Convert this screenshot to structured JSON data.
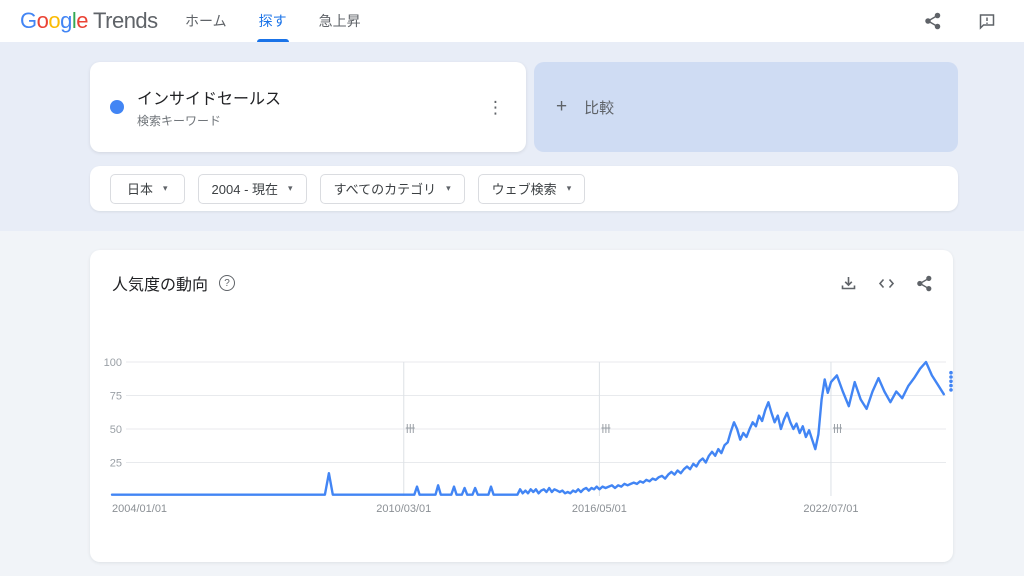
{
  "header": {
    "logo_letters": [
      {
        "ch": "G",
        "color": "#4285F4"
      },
      {
        "ch": "o",
        "color": "#EA4335"
      },
      {
        "ch": "o",
        "color": "#FBBC05"
      },
      {
        "ch": "g",
        "color": "#4285F4"
      },
      {
        "ch": "l",
        "color": "#34A853"
      },
      {
        "ch": "e",
        "color": "#EA4335"
      }
    ],
    "logo_suffix": "Trends",
    "tabs": [
      {
        "label": "ホーム",
        "active": false
      },
      {
        "label": "探す",
        "active": true
      },
      {
        "label": "急上昇",
        "active": false
      }
    ]
  },
  "query_card": {
    "term": "インサイドセールス",
    "type_label": "検索キーワード",
    "dot_color": "#4285f4"
  },
  "compare_card": {
    "plus": "+",
    "label": "比較"
  },
  "filters": [
    {
      "label": "日本"
    },
    {
      "label": "2004 - 現在"
    },
    {
      "label": "すべてのカテゴリ"
    },
    {
      "label": "ウェブ検索"
    }
  ],
  "filter_caret": "▾",
  "kebab_glyph": "⋮",
  "help_glyph": "?",
  "trend_card": {
    "title": "人気度の動向"
  },
  "chart_data": {
    "type": "line",
    "title": "人気度の動向",
    "series_name": "インサイドセールス",
    "frequency": "monthly",
    "start_month": "2004-01",
    "line_color": "#4285f4",
    "ylim": [
      0,
      100
    ],
    "y_ticks": [
      25,
      50,
      75,
      100
    ],
    "x_ticks": [
      {
        "label": "2004/01/01",
        "month_index": 0
      },
      {
        "label": "2010/03/01",
        "month_index": 74
      },
      {
        "label": "2016/05/01",
        "month_index": 148
      },
      {
        "label": "2022/07/01",
        "month_index": 222
      }
    ],
    "note_marker_month_indices": [
      74,
      148,
      222
    ],
    "partial_value": 92,
    "values": [
      1,
      1,
      1,
      1,
      1,
      1,
      1,
      1,
      1,
      1,
      1,
      1,
      1,
      1,
      1,
      1,
      1,
      1,
      1,
      1,
      1,
      1,
      1,
      1,
      1,
      1,
      1,
      1,
      1,
      1,
      1,
      1,
      1,
      1,
      1,
      1,
      1,
      1,
      1,
      1,
      1,
      1,
      1,
      1,
      1,
      1,
      1,
      1,
      1,
      1,
      1,
      1,
      1,
      1,
      1,
      17,
      1,
      1,
      1,
      1,
      1,
      1,
      1,
      1,
      1,
      1,
      1,
      1,
      1,
      1,
      1,
      1,
      1,
      1,
      1,
      1,
      1,
      1,
      1,
      7,
      1,
      1,
      1,
      1,
      1,
      1,
      1,
      8,
      1,
      1,
      1,
      1,
      1,
      7,
      1,
      1,
      1,
      6,
      1,
      1,
      1,
      6,
      1,
      1,
      1,
      1,
      1,
      7,
      1,
      1,
      1,
      1,
      1,
      1,
      1,
      1,
      1,
      1,
      5,
      2,
      4,
      2,
      5,
      3,
      5,
      2,
      4,
      5,
      3,
      6,
      3,
      5,
      4,
      3,
      4,
      2,
      3,
      2,
      4,
      3,
      5,
      3,
      5,
      6,
      4,
      6,
      5,
      7,
      5,
      7,
      6,
      7,
      8,
      6,
      8,
      7,
      9,
      8,
      9,
      10,
      9,
      11,
      10,
      12,
      11,
      13,
      12,
      14,
      15,
      13,
      16,
      18,
      16,
      19,
      17,
      20,
      22,
      20,
      24,
      22,
      26,
      28,
      25,
      30,
      33,
      30,
      35,
      32,
      38,
      40,
      48,
      55,
      50,
      42,
      47,
      44,
      50,
      55,
      52,
      60,
      56,
      64,
      70,
      62,
      55,
      60,
      50,
      57,
      62,
      55,
      50,
      54,
      47,
      52,
      44,
      49,
      42,
      35,
      46,
      72,
      87,
      77,
      85,
      90,
      78,
      67,
      85,
      72,
      65,
      78,
      88,
      78,
      70,
      78,
      73,
      82,
      88,
      95,
      100,
      90,
      83,
      76
    ]
  }
}
